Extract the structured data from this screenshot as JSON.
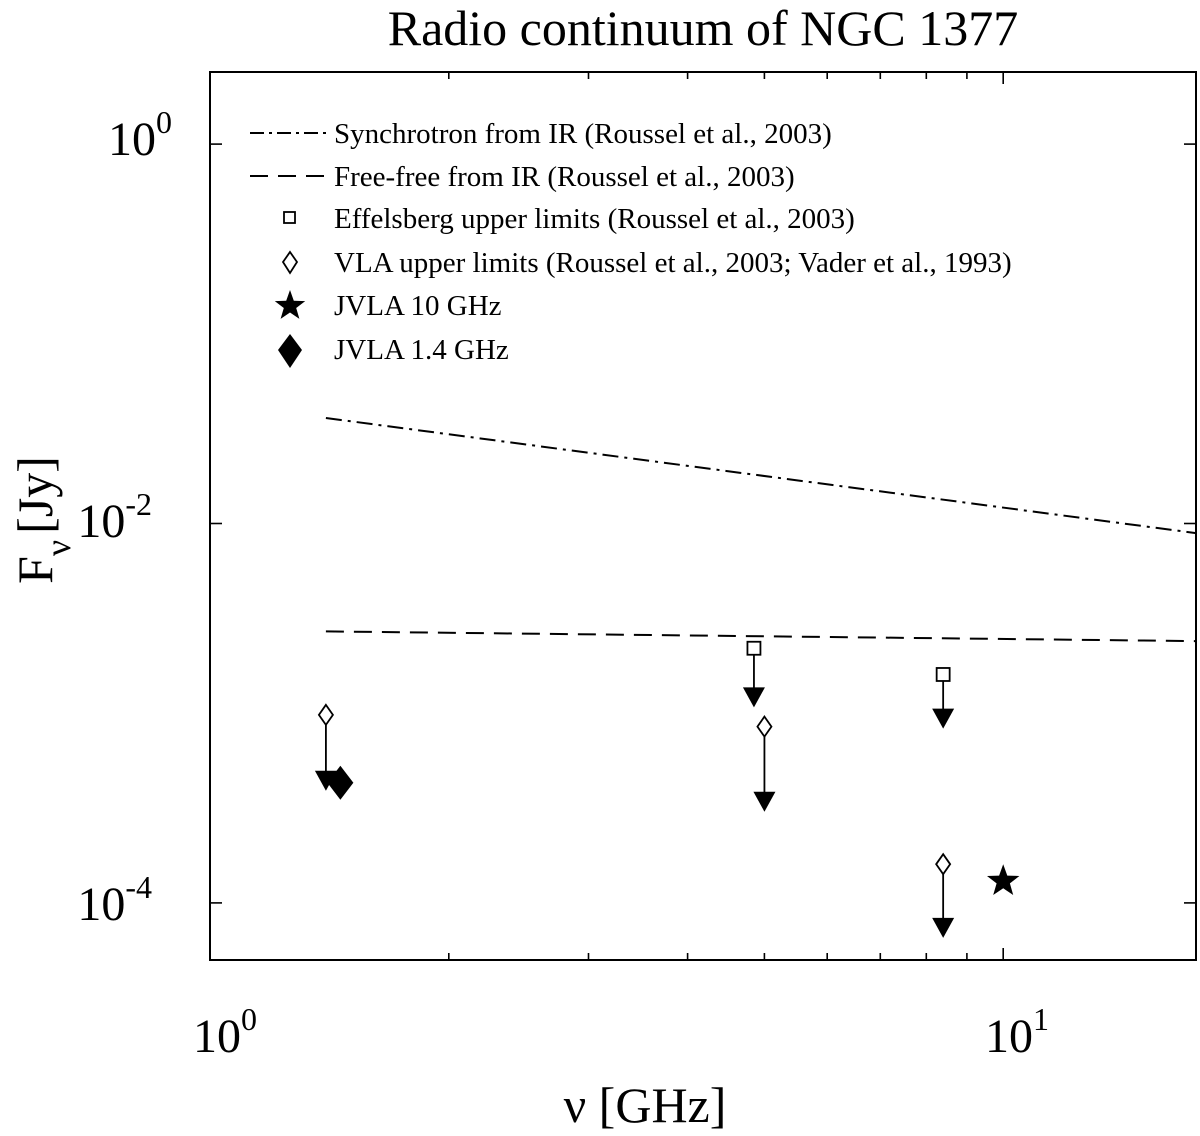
{
  "chart_data": {
    "type": "scatter",
    "title": "Radio continuum of NGC 1377",
    "xlabel": "ν [GHz]",
    "ylabel": "F",
    "ylabel_sub": "ν",
    "ylabel_unit": "[Jy]",
    "xscale": "log",
    "yscale": "log",
    "xlim": [
      1.0,
      17.5
    ],
    "ylim": [
      5e-05,
      2.4
    ],
    "x_ticks": [
      {
        "base": "10",
        "exp": "0",
        "value": 1
      },
      {
        "base": "10",
        "exp": "1",
        "value": 10
      }
    ],
    "y_ticks": [
      {
        "base": "10",
        "exp": "0",
        "value": 1
      },
      {
        "base": "10",
        "exp": "-2",
        "value": 0.01
      },
      {
        "base": "10",
        "exp": "-4",
        "value": 0.0001
      }
    ],
    "legend_position": "top-left",
    "legend": [
      {
        "label": "Synchrotron from IR (Roussel et al., 2003)",
        "marker": "dashdot-line"
      },
      {
        "label": "Free-free from IR (Roussel et al., 2003)",
        "marker": "dashed-line"
      },
      {
        "label": "Effelsberg upper limits (Roussel et al., 2003)",
        "marker": "open-square"
      },
      {
        "label": "VLA upper limits (Roussel et al., 2003; Vader et al., 1993)",
        "marker": "open-diamond"
      },
      {
        "label": "JVLA 10 GHz",
        "marker": "filled-star"
      },
      {
        "label": "JVLA 1.4 GHz",
        "marker": "filled-diamond"
      }
    ],
    "series": [
      {
        "name": "Synchrotron from IR (Roussel et al., 2003)",
        "style": "dashdot",
        "x": [
          1.4,
          17.5
        ],
        "y": [
          0.036,
          0.0089
        ]
      },
      {
        "name": "Free-free from IR (Roussel et al., 2003)",
        "style": "dashed",
        "x": [
          1.4,
          17.5
        ],
        "y": [
          0.0027,
          0.0024
        ]
      },
      {
        "name": "Effelsberg upper limits (Roussel et al., 2003)",
        "style": "upper-limit-square",
        "x": [
          4.85,
          8.4
        ],
        "y": [
          0.0022,
          0.0016
        ],
        "arrow_to": [
          0.0011,
          0.00085
        ]
      },
      {
        "name": "VLA upper limits (Roussel et al., 2003; Vader et al., 1993)",
        "style": "upper-limit-diamond",
        "x": [
          1.4,
          5.0,
          8.4
        ],
        "y": [
          0.00098,
          0.00085,
          0.00016
        ],
        "arrow_to": [
          0.0004,
          0.00031,
          6.7e-05
        ]
      },
      {
        "name": "JVLA 10 GHz",
        "style": "filled-star",
        "x": [
          10.0
        ],
        "y": [
          0.00013
        ]
      },
      {
        "name": "JVLA 1.4 GHz",
        "style": "filled-diamond",
        "x": [
          1.46
        ],
        "y": [
          0.00043
        ]
      }
    ]
  }
}
